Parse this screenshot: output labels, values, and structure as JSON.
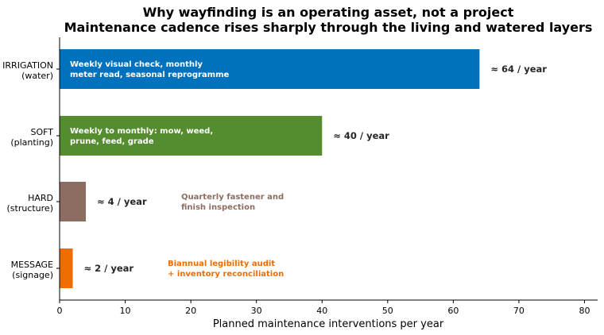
{
  "chart_data": {
    "type": "bar",
    "orientation": "horizontal",
    "title": "Why wayfinding is an operating asset, not a project",
    "subtitle": "Maintenance cadence rises sharply through the living and watered layers",
    "xlabel": "Planned maintenance interventions per year",
    "ylabel": "",
    "xlim": [
      0,
      82
    ],
    "xticks": [
      0,
      10,
      20,
      30,
      40,
      50,
      60,
      70,
      80
    ],
    "grid": false,
    "categories": [
      {
        "line1": "IRRIGATION",
        "line2": "(water)"
      },
      {
        "line1": "SOFT",
        "line2": "(planting)"
      },
      {
        "line1": "HARD",
        "line2": "(structure)"
      },
      {
        "line1": "MESSAGE",
        "line2": "(signage)"
      }
    ],
    "values": [
      64,
      40,
      4,
      2
    ],
    "value_labels": [
      "≈ 64 / year",
      "≈ 40 / year",
      "≈ 4 / year",
      "≈ 2 / year"
    ],
    "colors": [
      "#0072bd",
      "#548c2f",
      "#8c6d62",
      "#ef6c00"
    ],
    "annotations": [
      {
        "lines": [
          "Weekly visual check, monthly",
          "meter read, seasonal reprogramme"
        ],
        "placement": "inside",
        "color": "#ffffff"
      },
      {
        "lines": [
          "Weekly to monthly: mow, weed,",
          "prune, feed, grade"
        ],
        "placement": "inside",
        "color": "#ffffff"
      },
      {
        "lines": [
          "Quarterly fastener and",
          "finish inspection"
        ],
        "placement": "outside",
        "color": "#8c6d62"
      },
      {
        "lines": [
          "Biannual legibility audit",
          "+ inventory reconciliation"
        ],
        "placement": "outside",
        "color": "#ef6c00"
      }
    ]
  }
}
